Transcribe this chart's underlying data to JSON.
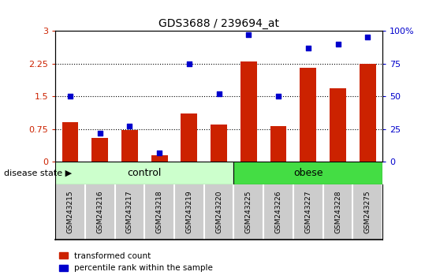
{
  "title": "GDS3688 / 239694_at",
  "categories": [
    "GSM243215",
    "GSM243216",
    "GSM243217",
    "GSM243218",
    "GSM243219",
    "GSM243220",
    "GSM243225",
    "GSM243226",
    "GSM243227",
    "GSM243228",
    "GSM243275"
  ],
  "bar_values": [
    0.9,
    0.55,
    0.72,
    0.15,
    1.1,
    0.85,
    2.3,
    0.82,
    2.15,
    1.68,
    2.25
  ],
  "scatter_values": [
    50,
    22,
    27,
    7,
    75,
    52,
    97,
    50,
    87,
    90,
    95
  ],
  "bar_color": "#cc2200",
  "scatter_color": "#0000cc",
  "ylim_left": [
    0,
    3
  ],
  "ylim_right": [
    0,
    100
  ],
  "yticks_left": [
    0,
    0.75,
    1.5,
    2.25,
    3
  ],
  "ytick_labels_left": [
    "0",
    "0.75",
    "1.5",
    "2.25",
    "3"
  ],
  "yticks_right": [
    0,
    25,
    50,
    75,
    100
  ],
  "ytick_labels_right": [
    "0",
    "25",
    "50",
    "75",
    "100%"
  ],
  "hlines": [
    0.75,
    1.5,
    2.25
  ],
  "group_labels": [
    "control",
    "obese"
  ],
  "group_ranges": [
    [
      0,
      5
    ],
    [
      6,
      10
    ]
  ],
  "control_color": "#ccffcc",
  "obese_color": "#44dd44",
  "gray_color": "#cccccc",
  "disease_state_label": "disease state",
  "legend_items": [
    "transformed count",
    "percentile rank within the sample"
  ],
  "legend_colors": [
    "#cc2200",
    "#0000cc"
  ],
  "bar_width": 0.55
}
